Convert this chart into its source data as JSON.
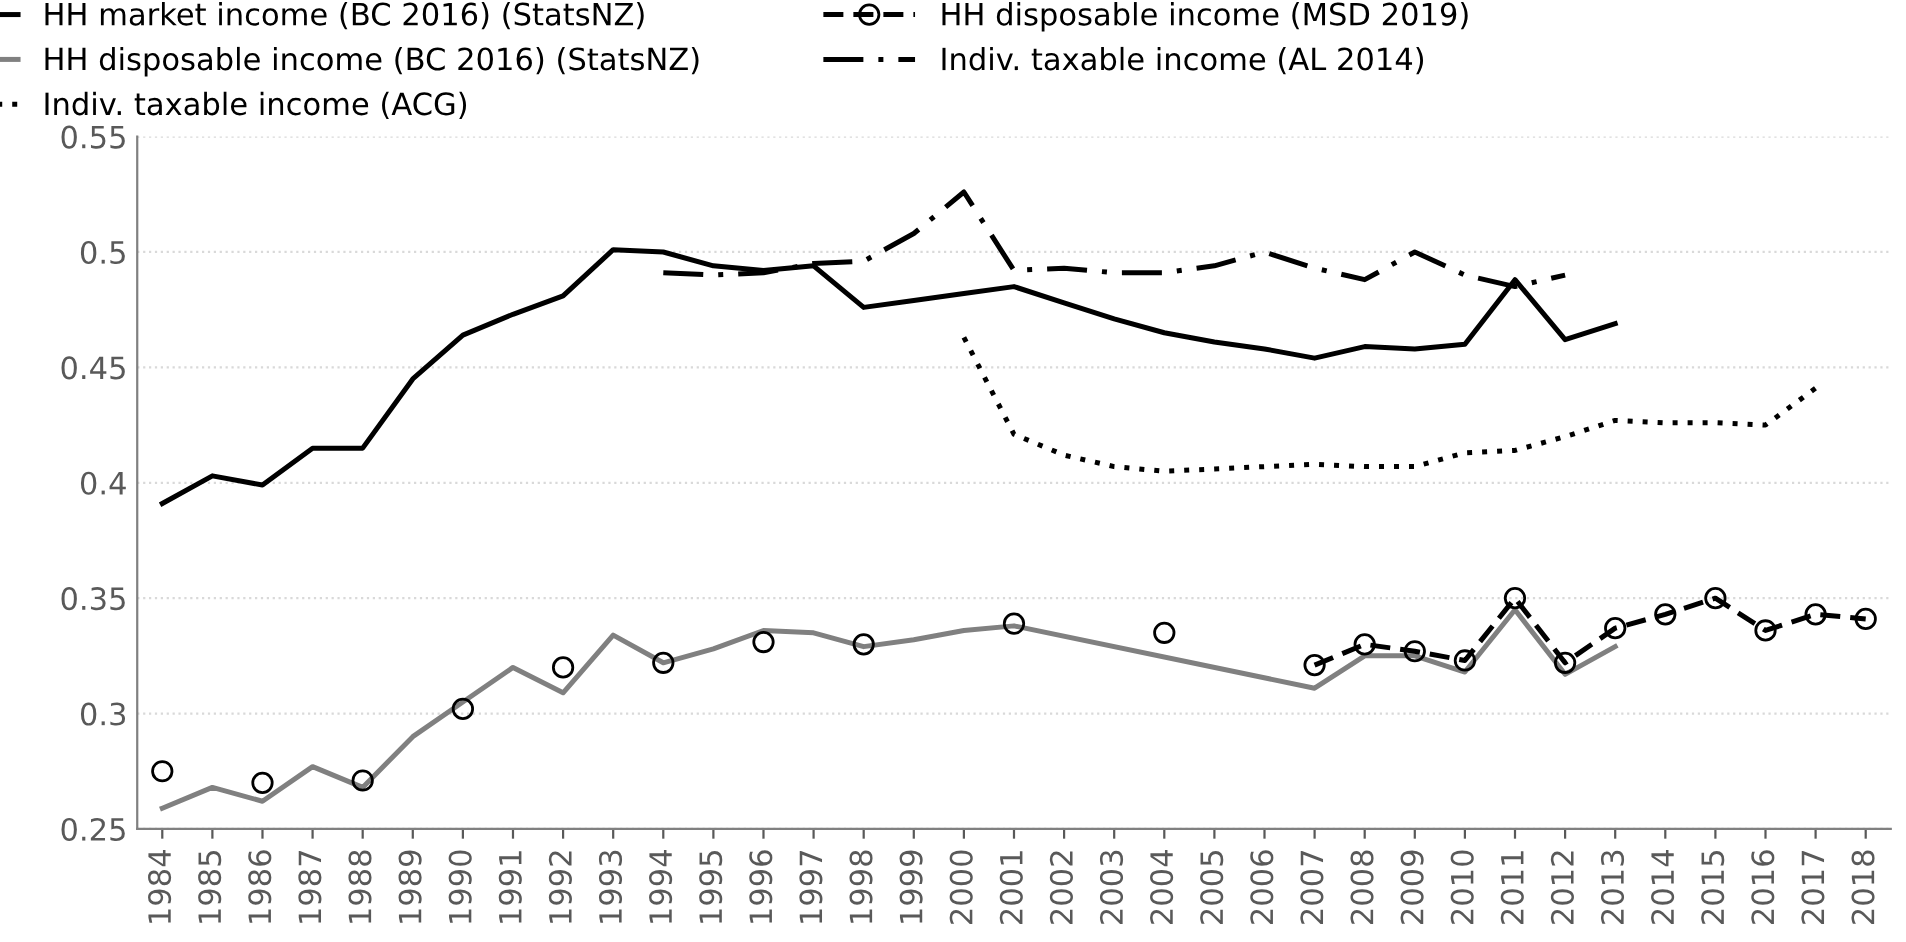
{
  "chart_data": {
    "type": "line",
    "series": [
      {
        "name": "HH market income (BC 2016) (StatsNZ)",
        "color": "#000000",
        "line_style": "solid",
        "marker": "none",
        "x": [
          1984,
          1985,
          1986,
          1987,
          1988,
          1989,
          1990,
          1991,
          1992,
          1993,
          1994,
          1995,
          1996,
          1997,
          1998,
          1999,
          2000,
          2001,
          2002,
          2003,
          2004,
          2005,
          2006,
          2007,
          2008,
          2009,
          2010,
          2011,
          2012,
          2013
        ],
        "values": [
          0.391,
          0.403,
          0.399,
          0.415,
          0.415,
          0.445,
          0.464,
          0.473,
          0.481,
          0.501,
          0.5,
          0.494,
          0.492,
          0.494,
          0.476,
          0.479,
          0.482,
          0.485,
          0.478,
          0.471,
          0.465,
          0.461,
          0.458,
          0.454,
          0.459,
          0.458,
          0.46,
          0.488,
          0.462,
          0.469
        ]
      },
      {
        "name": "HH disposable income (BC 2016) (StatsNZ)",
        "color": "#808080",
        "line_style": "solid",
        "marker": "none",
        "x": [
          1984,
          1985,
          1986,
          1987,
          1988,
          1989,
          1990,
          1991,
          1992,
          1993,
          1994,
          1995,
          1996,
          1997,
          1998,
          1999,
          2000,
          2001,
          2007,
          2008,
          2009,
          2010,
          2011,
          2012,
          2013
        ],
        "values": [
          0.259,
          0.268,
          0.262,
          0.277,
          0.268,
          0.29,
          0.305,
          0.32,
          0.309,
          0.334,
          0.322,
          0.328,
          0.336,
          0.335,
          0.329,
          0.332,
          0.336,
          0.338,
          0.311,
          0.325,
          0.325,
          0.318,
          0.345,
          0.317,
          0.329
        ]
      },
      {
        "name": "Indiv. taxable income (ACG)",
        "color": "#000000",
        "line_style": "dotted",
        "marker": "none",
        "x": [
          2000,
          2001,
          2002,
          2003,
          2004,
          2005,
          2006,
          2007,
          2008,
          2009,
          2010,
          2011,
          2012,
          2013,
          2014,
          2015,
          2016,
          2017
        ],
        "values": [
          0.463,
          0.421,
          0.412,
          0.407,
          0.405,
          0.406,
          0.407,
          0.408,
          0.407,
          0.407,
          0.413,
          0.414,
          0.42,
          0.427,
          0.426,
          0.426,
          0.425,
          0.441
        ]
      },
      {
        "name": "HH disposable income (MSD 2019)",
        "color": "#000000",
        "line_style": "dashed",
        "marker": "circle",
        "x": [
          1984,
          1985,
          1986,
          1987,
          1988,
          1989,
          1990,
          1991,
          1992,
          1993,
          1994,
          1995,
          1996,
          1997,
          1998,
          1999,
          2000,
          2001,
          2002,
          2003,
          2004,
          2005,
          2006,
          2007,
          2008,
          2009,
          2010,
          2011,
          2012,
          2013,
          2014,
          2015,
          2016,
          2017,
          2018
        ],
        "values": [
          0.275,
          null,
          0.27,
          null,
          0.271,
          null,
          0.302,
          null,
          0.32,
          null,
          0.322,
          null,
          0.331,
          null,
          0.33,
          null,
          null,
          0.339,
          null,
          null,
          0.335,
          null,
          null,
          0.321,
          0.33,
          0.327,
          0.323,
          0.35,
          0.322,
          0.337,
          0.343,
          0.35,
          0.336,
          0.343,
          0.341
        ]
      },
      {
        "name": "Indiv. taxable income (AL 2014)",
        "color": "#000000",
        "line_style": "dashdot",
        "marker": "none",
        "x": [
          1994,
          1995,
          1996,
          1997,
          1998,
          1999,
          2000,
          2001,
          2002,
          2003,
          2004,
          2005,
          2006,
          2007,
          2008,
          2009,
          2010,
          2011,
          2012
        ],
        "values": [
          0.491,
          0.49,
          0.491,
          0.495,
          0.496,
          0.508,
          0.526,
          0.492,
          0.493,
          0.491,
          0.491,
          0.494,
          0.5,
          0.493,
          0.488,
          0.5,
          0.49,
          0.485,
          0.49
        ]
      }
    ],
    "xlim": [
      1983.5,
      2018.5
    ],
    "xticks": [
      1984,
      1985,
      1986,
      1987,
      1988,
      1989,
      1990,
      1991,
      1992,
      1993,
      1994,
      1995,
      1996,
      1997,
      1998,
      1999,
      2000,
      2001,
      2002,
      2003,
      2004,
      2005,
      2006,
      2007,
      2008,
      2009,
      2010,
      2011,
      2012,
      2013,
      2014,
      2015,
      2016,
      2017,
      2018
    ],
    "ylim": [
      0.25,
      0.55
    ],
    "yticks": [
      0.25,
      0.3,
      0.35,
      0.4,
      0.45,
      0.5,
      0.55
    ],
    "grid": "y",
    "legend": "top"
  }
}
